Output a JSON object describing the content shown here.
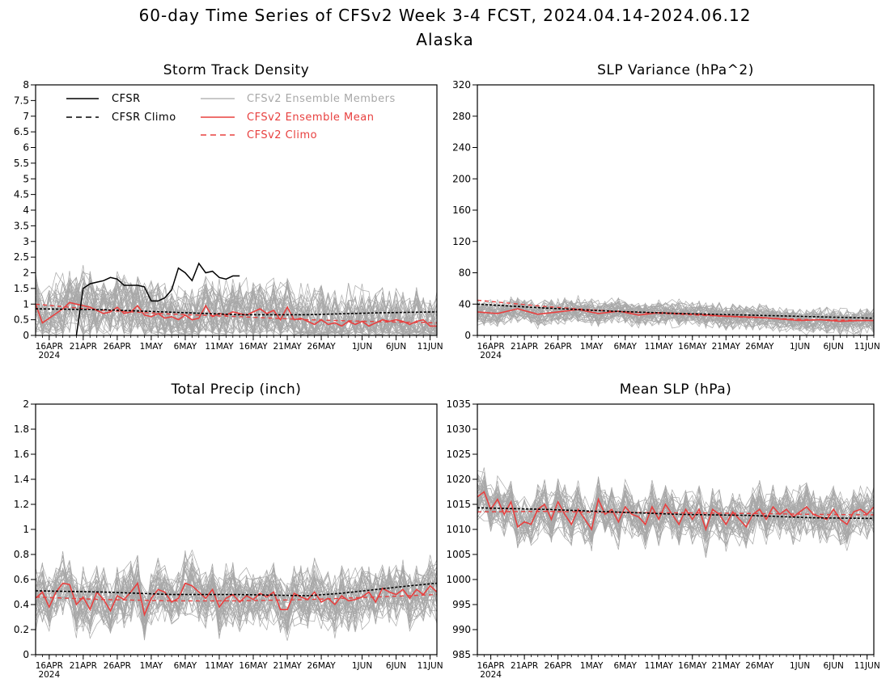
{
  "title_line1": "60-day Time Series of CFSv2 Week 3-4 FCST, 2024.04.14-2024.06.12",
  "title_line2": "Alaska",
  "x_tick_labels": [
    "16APR",
    "21APR",
    "26APR",
    "1MAY",
    "6MAY",
    "11MAY",
    "16MAY",
    "21MAY",
    "26MAY",
    "1JUN",
    "6JUN",
    "11JUN"
  ],
  "x_tick_days": [
    2,
    7,
    12,
    17,
    22,
    27,
    32,
    37,
    42,
    48,
    53,
    58
  ],
  "x_year_label": "2024",
  "legend": {
    "cfsr": "CFSR",
    "cfsr_climo": "CFSR Climo",
    "members": "CFSv2 Ensemble Members",
    "ens_mean": "CFSv2 Ensemble Mean",
    "cfsv2_climo": "CFSv2 Climo"
  },
  "colors": {
    "cfsr": "#000000",
    "members": "#a8a8a8",
    "ens_mean": "#e8403f",
    "cfsv2_climo": "#e8403f",
    "frame": "#000000"
  },
  "chart_data": [
    {
      "type": "line",
      "title": "Storm Track Density",
      "ylim": [
        0,
        8
      ],
      "yticks": [
        0,
        0.5,
        1,
        1.5,
        2,
        2.5,
        3,
        3.5,
        4,
        4.5,
        5,
        5.5,
        6,
        6.5,
        7,
        7.5,
        8
      ],
      "ytick_labels": [
        "0",
        "0.5",
        "1",
        "1.5",
        "2",
        "2.5",
        "3",
        "3.5",
        "4",
        "4.5",
        "5",
        "5.5",
        "6",
        "6.5",
        "7",
        "7.5",
        "8"
      ],
      "x_range_days": [
        0,
        59
      ],
      "member_count": 40,
      "member_spread": 0.55,
      "member_min": 0,
      "cfsr": {
        "days": [
          6,
          7,
          8,
          9,
          10,
          11,
          12,
          13,
          14,
          15,
          16,
          17,
          18,
          19,
          20,
          21,
          22,
          23,
          24,
          25,
          26,
          27,
          28,
          29,
          30
        ],
        "values": [
          0,
          1.5,
          1.65,
          1.7,
          1.75,
          1.85,
          1.8,
          1.6,
          1.6,
          1.6,
          1.55,
          1.1,
          1.1,
          1.2,
          1.45,
          2.15,
          2.0,
          1.75,
          2.3,
          2.0,
          2.05,
          1.85,
          1.8,
          1.9,
          1.9
        ]
      },
      "cfsr_climo": {
        "days": [
          0,
          10,
          20,
          30,
          40,
          50,
          59
        ],
        "values": [
          0.85,
          0.82,
          0.74,
          0.66,
          0.66,
          0.72,
          0.75
        ]
      },
      "cfsv2_climo": {
        "days": [
          0,
          10,
          20,
          30,
          40,
          50,
          59
        ],
        "values": [
          1.0,
          0.8,
          0.68,
          0.6,
          0.5,
          0.44,
          0.4
        ]
      },
      "ens_mean": {
        "days": [
          0,
          1,
          2,
          3,
          4,
          5,
          6,
          7,
          8,
          9,
          10,
          11,
          12,
          13,
          14,
          15,
          16,
          17,
          18,
          19,
          20,
          21,
          22,
          23,
          24,
          25,
          26,
          27,
          28,
          29,
          30,
          31,
          32,
          33,
          34,
          35,
          36,
          37,
          38,
          39,
          40,
          41,
          42,
          43,
          44,
          45,
          46,
          47,
          48,
          49,
          50,
          51,
          52,
          53,
          54,
          55,
          56,
          57,
          58,
          59
        ],
        "values": [
          1.0,
          0.4,
          0.55,
          0.7,
          0.85,
          1.05,
          1.0,
          0.95,
          0.9,
          0.8,
          0.7,
          0.75,
          0.9,
          0.7,
          0.75,
          0.95,
          0.65,
          0.6,
          0.7,
          0.55,
          0.6,
          0.5,
          0.65,
          0.5,
          0.55,
          0.95,
          0.6,
          0.7,
          0.65,
          0.75,
          0.7,
          0.65,
          0.75,
          0.85,
          0.7,
          0.8,
          0.5,
          0.9,
          0.5,
          0.55,
          0.45,
          0.35,
          0.5,
          0.35,
          0.4,
          0.3,
          0.45,
          0.35,
          0.45,
          0.3,
          0.4,
          0.5,
          0.45,
          0.5,
          0.45,
          0.35,
          0.45,
          0.5,
          0.3,
          0.3
        ]
      }
    },
    {
      "type": "line",
      "title": "SLP Variance (hPa^2)",
      "ylim": [
        0,
        320
      ],
      "yticks": [
        0,
        40,
        80,
        120,
        160,
        200,
        240,
        280,
        320
      ],
      "ytick_labels": [
        "0",
        "40",
        "80",
        "120",
        "160",
        "200",
        "240",
        "280",
        "320"
      ],
      "x_range_days": [
        0,
        59
      ],
      "member_count": 40,
      "member_spread": 8,
      "member_min": 0,
      "cfsr_climo": {
        "days": [
          0,
          10,
          20,
          30,
          40,
          50,
          59
        ],
        "values": [
          40,
          35,
          31,
          28,
          26,
          24,
          22
        ]
      },
      "cfsv2_climo": {
        "days": [
          0,
          10,
          20,
          30,
          40,
          50,
          59
        ],
        "values": [
          45,
          37,
          31,
          27,
          23,
          20,
          19
        ]
      },
      "ens_mean": {
        "days": [
          0,
          3,
          6,
          9,
          12,
          15,
          18,
          21,
          24,
          27,
          30,
          33,
          36,
          39,
          42,
          45,
          48,
          51,
          54,
          57,
          59
        ],
        "values": [
          30,
          28,
          34,
          27,
          30,
          33,
          28,
          31,
          26,
          29,
          28,
          27,
          25,
          24,
          23,
          21,
          19,
          20,
          18,
          19,
          19
        ]
      }
    },
    {
      "type": "line",
      "title": "Total Precip (inch)",
      "ylim": [
        0,
        2
      ],
      "yticks": [
        0,
        0.2,
        0.4,
        0.6,
        0.8,
        1,
        1.2,
        1.4,
        1.6,
        1.8,
        2
      ],
      "ytick_labels": [
        "0",
        "0.2",
        "0.4",
        "0.6",
        "0.8",
        "1",
        "1.2",
        "1.4",
        "1.6",
        "1.8",
        "2"
      ],
      "x_range_days": [
        0,
        59
      ],
      "member_count": 40,
      "member_spread": 0.12,
      "member_min": 0.1,
      "cfsr_climo": {
        "days": [
          0,
          10,
          20,
          30,
          40,
          45,
          50,
          55,
          59
        ],
        "values": [
          0.51,
          0.5,
          0.48,
          0.48,
          0.47,
          0.49,
          0.52,
          0.55,
          0.57
        ]
      },
      "cfsv2_climo": {
        "days": [
          0,
          10,
          20,
          30,
          40,
          50,
          59
        ],
        "values": [
          0.46,
          0.44,
          0.43,
          0.43,
          0.44,
          0.46,
          0.48
        ]
      },
      "ens_mean": {
        "days": [
          0,
          1,
          2,
          3,
          4,
          5,
          6,
          7,
          8,
          9,
          10,
          11,
          12,
          13,
          14,
          15,
          16,
          17,
          18,
          19,
          20,
          21,
          22,
          23,
          24,
          25,
          26,
          27,
          28,
          29,
          30,
          31,
          32,
          33,
          34,
          35,
          36,
          37,
          38,
          39,
          40,
          41,
          42,
          43,
          44,
          45,
          46,
          47,
          48,
          49,
          50,
          51,
          52,
          53,
          54,
          55,
          56,
          57,
          58,
          59
        ],
        "values": [
          0.45,
          0.5,
          0.38,
          0.5,
          0.57,
          0.56,
          0.4,
          0.46,
          0.36,
          0.5,
          0.44,
          0.35,
          0.47,
          0.44,
          0.5,
          0.57,
          0.32,
          0.45,
          0.52,
          0.5,
          0.42,
          0.45,
          0.57,
          0.55,
          0.5,
          0.45,
          0.52,
          0.38,
          0.45,
          0.48,
          0.42,
          0.47,
          0.44,
          0.49,
          0.46,
          0.5,
          0.36,
          0.36,
          0.49,
          0.46,
          0.44,
          0.5,
          0.42,
          0.45,
          0.4,
          0.47,
          0.43,
          0.44,
          0.46,
          0.5,
          0.42,
          0.53,
          0.5,
          0.48,
          0.52,
          0.45,
          0.52,
          0.48,
          0.55,
          0.5
        ]
      }
    },
    {
      "type": "line",
      "title": "Mean SLP (hPa)",
      "ylim": [
        985,
        1035
      ],
      "yticks": [
        985,
        990,
        995,
        1000,
        1005,
        1010,
        1015,
        1020,
        1025,
        1030,
        1035
      ],
      "ytick_labels": [
        "985",
        "990",
        "995",
        "1000",
        "1005",
        "1010",
        "1015",
        "1020",
        "1025",
        "1030",
        "1035"
      ],
      "x_range_days": [
        0,
        59
      ],
      "member_count": 40,
      "member_spread": 2.5,
      "member_min": 985,
      "cfsr_climo": {
        "days": [
          0,
          10,
          20,
          30,
          40,
          50,
          59
        ],
        "values": [
          1014.3,
          1014.0,
          1013.5,
          1013.0,
          1012.8,
          1012.3,
          1012.2
        ]
      },
      "cfsv2_climo": {
        "days": [
          0,
          10,
          20,
          30,
          40,
          50,
          59
        ],
        "values": [
          1013.5,
          1013.6,
          1013.4,
          1013.3,
          1013.2,
          1013.0,
          1012.9
        ]
      },
      "ens_mean": {
        "days": [
          0,
          1,
          2,
          3,
          4,
          5,
          6,
          7,
          8,
          9,
          10,
          11,
          12,
          13,
          14,
          15,
          16,
          17,
          18,
          19,
          20,
          21,
          22,
          23,
          24,
          25,
          26,
          27,
          28,
          29,
          30,
          31,
          32,
          33,
          34,
          35,
          36,
          37,
          38,
          39,
          40,
          41,
          42,
          43,
          44,
          45,
          46,
          47,
          48,
          49,
          50,
          51,
          52,
          53,
          54,
          55,
          56,
          57,
          58,
          59
        ],
        "values": [
          1016.5,
          1017.5,
          1014.0,
          1016.0,
          1013.0,
          1015.5,
          1010.5,
          1011.5,
          1011.0,
          1014.0,
          1015.0,
          1012.0,
          1015.5,
          1013.0,
          1011.0,
          1014.0,
          1012.0,
          1010.0,
          1016.0,
          1013.0,
          1014.0,
          1011.5,
          1014.5,
          1013.0,
          1012.5,
          1011.0,
          1014.5,
          1012.0,
          1015.0,
          1013.0,
          1011.0,
          1014.0,
          1012.0,
          1014.0,
          1010.0,
          1014.0,
          1013.0,
          1011.0,
          1013.5,
          1012.0,
          1010.5,
          1013.0,
          1014.0,
          1012.0,
          1014.5,
          1013.0,
          1014.0,
          1012.5,
          1013.5,
          1014.5,
          1013.0,
          1012.5,
          1012.0,
          1014.0,
          1012.0,
          1011.0,
          1013.5,
          1014.0,
          1013.0,
          1014.5
        ]
      }
    }
  ]
}
